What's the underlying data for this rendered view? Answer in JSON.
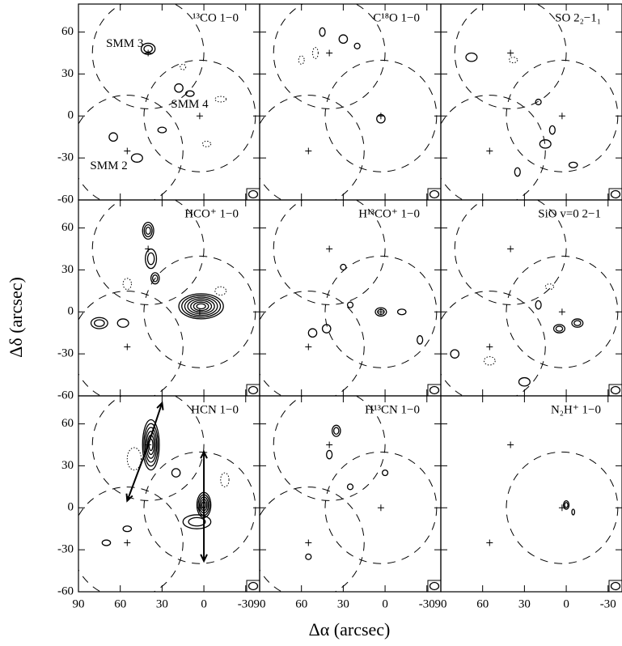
{
  "chart_data": [
    {
      "type": "contour",
      "title": "¹³CO 1−0",
      "xlim": [
        90,
        -40
      ],
      "ylim": [
        -60,
        80
      ],
      "xticks": [
        90,
        60,
        30,
        0,
        -30
      ],
      "yticks": [
        -60,
        -30,
        0,
        30,
        60
      ]
    },
    {
      "type": "contour",
      "title": "C¹⁸O 1−0",
      "xlim": [
        90,
        -40
      ],
      "ylim": [
        -60,
        80
      ],
      "xticks": [
        90,
        60,
        30,
        0,
        -30
      ],
      "yticks": [
        -60,
        -30,
        0,
        30,
        60
      ]
    },
    {
      "type": "contour",
      "title": "SO 2₂−1₁",
      "xlim": [
        90,
        -40
      ],
      "ylim": [
        -60,
        80
      ],
      "xticks": [
        90,
        60,
        30,
        0,
        -30
      ],
      "yticks": [
        -60,
        -30,
        0,
        30,
        60
      ]
    },
    {
      "type": "contour",
      "title": "HCO⁺ 1−0",
      "xlim": [
        90,
        -40
      ],
      "ylim": [
        -60,
        80
      ],
      "xticks": [
        90,
        60,
        30,
        0,
        -30
      ],
      "yticks": [
        -60,
        -30,
        0,
        30,
        60
      ]
    },
    {
      "type": "contour",
      "title": "H¹³CO⁺ 1−0",
      "xlim": [
        90,
        -40
      ],
      "ylim": [
        -60,
        80
      ],
      "xticks": [
        90,
        60,
        30,
        0,
        -30
      ],
      "yticks": [
        -60,
        -30,
        0,
        30,
        60
      ]
    },
    {
      "type": "contour",
      "title": "SiO v=0 2−1",
      "xlim": [
        90,
        -40
      ],
      "ylim": [
        -60,
        80
      ],
      "xticks": [
        90,
        60,
        30,
        0,
        -30
      ],
      "yticks": [
        -60,
        -30,
        0,
        30,
        60
      ]
    },
    {
      "type": "contour",
      "title": "HCN 1−0",
      "xlim": [
        90,
        -40
      ],
      "ylim": [
        -60,
        80
      ],
      "xticks": [
        90,
        60,
        30,
        0,
        -30
      ],
      "yticks": [
        -60,
        -30,
        0,
        30,
        60
      ]
    },
    {
      "type": "contour",
      "title": "H¹³CN 1−0",
      "xlim": [
        90,
        -40
      ],
      "ylim": [
        -60,
        80
      ],
      "xticks": [
        90,
        60,
        30,
        0,
        -30
      ],
      "yticks": [
        -60,
        -30,
        0,
        30,
        60
      ]
    },
    {
      "type": "contour",
      "title": "N₂H⁺ 1−0",
      "xlim": [
        90,
        -40
      ],
      "ylim": [
        -60,
        80
      ],
      "xticks": [
        90,
        60,
        30,
        0,
        -30
      ],
      "yticks": [
        -60,
        -30,
        0,
        30,
        60
      ]
    }
  ],
  "x_label": "Δα (arcsec)",
  "y_label": "Δδ (arcsec)",
  "sources": [
    {
      "name": "SMM 3",
      "x": 40,
      "y": 45
    },
    {
      "name": "SMM 2",
      "x": 55,
      "y": -25
    },
    {
      "name": "SMM 4",
      "x": 3,
      "y": 0
    }
  ]
}
